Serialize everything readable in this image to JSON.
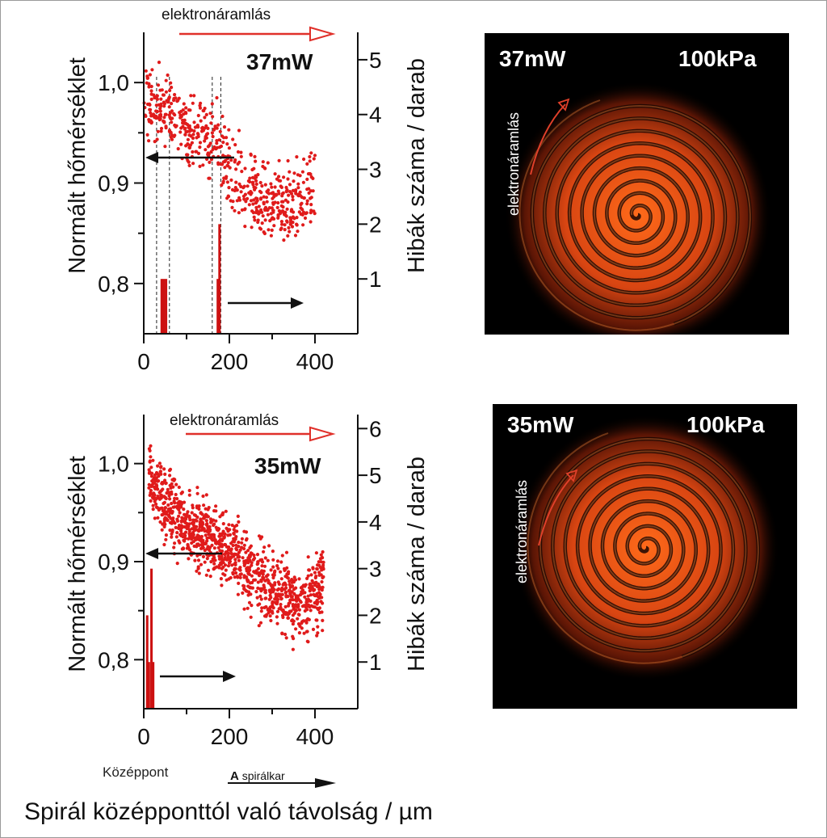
{
  "colors": {
    "data": "#e01b1b",
    "bars": "#cc1111",
    "arrow_red": "#e0302a",
    "axis": "#111111",
    "thermal_bg": "#000000"
  },
  "figure": {
    "bottom_title": "Spirál középponttól való távolság / µm",
    "center_label": "Középpont",
    "arm_label_bold": "A",
    "arm_label_rest": " spirálkar"
  },
  "chart_data": [
    {
      "type": "scatter",
      "title": "37mW",
      "flow_label": "elektronáramlás",
      "xlabel": "",
      "ylabel": "Normált hőmérséklet",
      "y2label": "Hibák száma / darab",
      "xlim": [
        0,
        500
      ],
      "ylim": [
        0.75,
        1.05
      ],
      "y2lim": [
        0,
        5.5
      ],
      "xticks": [
        0,
        200,
        400
      ],
      "yticks": [
        0.8,
        0.9,
        1.0
      ],
      "ytick_labels": [
        "0,8",
        "0,9",
        "1,0"
      ],
      "y2ticks": [
        1,
        2,
        3,
        4,
        5
      ],
      "bars": [
        {
          "x": 42,
          "value": 1
        },
        {
          "x": 47,
          "value": 1
        },
        {
          "x": 52,
          "value": 1
        },
        {
          "x": 173,
          "value": 1
        },
        {
          "x": 177,
          "value": 2
        }
      ],
      "dashed_lines_x": [
        30,
        60,
        160,
        180
      ],
      "trend": [
        [
          0,
          0.985
        ],
        [
          40,
          0.975
        ],
        [
          80,
          0.96
        ],
        [
          120,
          0.945
        ],
        [
          170,
          0.945
        ],
        [
          200,
          0.91
        ],
        [
          260,
          0.89
        ],
        [
          320,
          0.875
        ],
        [
          360,
          0.89
        ],
        [
          400,
          0.895
        ]
      ],
      "noise": 0.018,
      "n_points": 600,
      "seed": 37
    },
    {
      "type": "scatter",
      "title": "35mW",
      "flow_label": "elektronáramlás",
      "xlabel": "",
      "ylabel": "Normált hőmérséklet",
      "y2label": "Hibák száma / darab",
      "xlim": [
        0,
        500
      ],
      "ylim": [
        0.75,
        1.05
      ],
      "y2lim": [
        0,
        6.3
      ],
      "xticks": [
        0,
        200,
        400
      ],
      "yticks": [
        0.8,
        0.9,
        1.0
      ],
      "ytick_labels": [
        "0,8",
        "0,9",
        "1,0"
      ],
      "y2ticks": [
        1,
        2,
        3,
        4,
        5,
        6
      ],
      "bars": [
        {
          "x": 8,
          "value": 2
        },
        {
          "x": 12,
          "value": 1
        },
        {
          "x": 18,
          "value": 3
        },
        {
          "x": 22,
          "value": 1
        }
      ],
      "dashed_lines_x": [],
      "trend": [
        [
          12,
          0.985
        ],
        [
          40,
          0.965
        ],
        [
          100,
          0.935
        ],
        [
          150,
          0.925
        ],
        [
          200,
          0.91
        ],
        [
          260,
          0.885
        ],
        [
          320,
          0.865
        ],
        [
          370,
          0.855
        ],
        [
          420,
          0.88
        ]
      ],
      "noise": 0.018,
      "n_points": 1100,
      "seed": 35
    }
  ],
  "thermal_images": [
    {
      "power": "37mW",
      "pressure": "100kPa",
      "flow_label": "elektronáramlás"
    },
    {
      "power": "35mW",
      "pressure": "100kPa",
      "flow_label": "elektronáramlás"
    }
  ]
}
